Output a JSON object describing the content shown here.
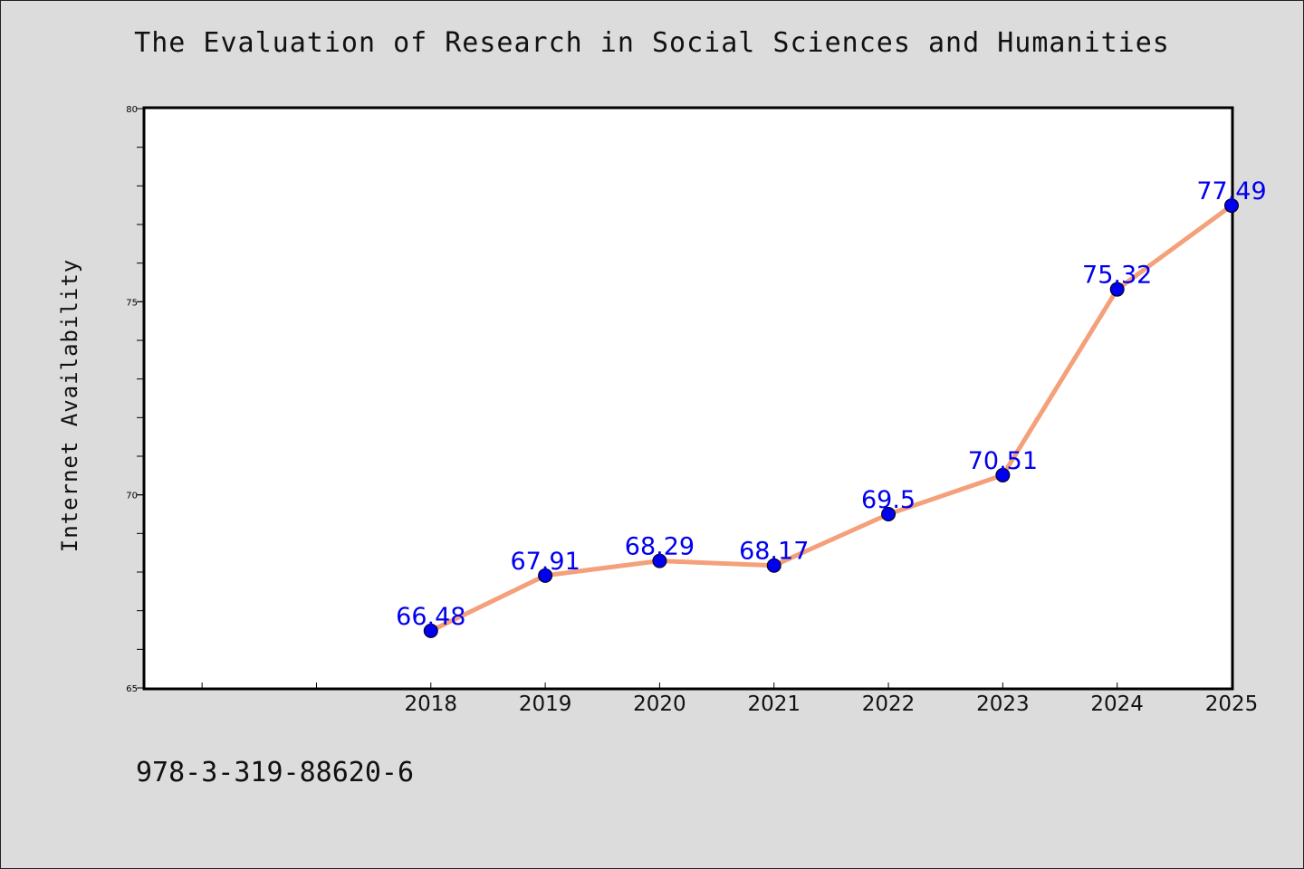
{
  "chart_data": {
    "type": "line",
    "title": "The Evaluation of Research in Social Sciences and Humanities",
    "xlabel": "",
    "ylabel": "Internet Availability",
    "categories": [
      "2018",
      "2019",
      "2020",
      "2021",
      "2022",
      "2023",
      "2024",
      "2025"
    ],
    "series": [
      {
        "values": [
          66.48,
          67.91,
          68.29,
          68.17,
          69.5,
          70.51,
          75.32,
          77.49
        ],
        "labels": [
          "66.48",
          "67.91",
          "68.29",
          "68.17",
          "69.5",
          "70.51",
          "75.32",
          "77.49"
        ],
        "line_color": "#f4a07a",
        "marker_color": "#0000ee"
      }
    ],
    "x_leading_empty_slots": 2,
    "ylim": [
      65,
      80
    ],
    "yticks": [
      "65",
      "70",
      "75",
      "80"
    ],
    "grid": false,
    "legend": "none",
    "label_color": "#0000ee"
  },
  "footer": {
    "code": "978-3-319-88620-6"
  }
}
